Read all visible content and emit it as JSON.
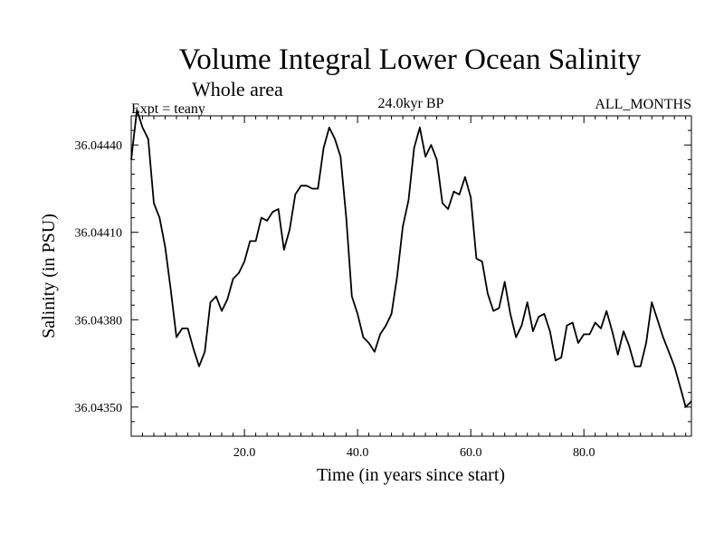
{
  "chart_data": {
    "type": "line",
    "title": "Volume Integral Lower Ocean Salinity",
    "subtitle": "Whole area",
    "experiment": "Expt = teany",
    "period": "24.0kyr BP",
    "months": "ALL_MONTHS",
    "xlabel": "Time (in years since start)",
    "ylabel": "Salinity (in PSU)",
    "xlim": [
      0,
      99
    ],
    "ylim": [
      36.0434,
      36.0445
    ],
    "xticks": [
      20,
      40,
      60,
      80
    ],
    "xtick_labels": [
      "20.0",
      "40.0",
      "60.0",
      "80.0"
    ],
    "yticks": [
      36.0435,
      36.0438,
      36.0441,
      36.0444
    ],
    "ytick_labels": [
      "36.04350",
      "36.04380",
      "36.04410",
      "36.04440"
    ],
    "grid": false,
    "series": [
      {
        "name": "Salinity",
        "x": [
          0,
          1,
          2,
          3,
          4,
          5,
          6,
          7,
          8,
          9,
          10,
          11,
          12,
          13,
          14,
          15,
          16,
          17,
          18,
          19,
          20,
          21,
          22,
          23,
          24,
          25,
          26,
          27,
          28,
          29,
          30,
          31,
          32,
          33,
          34,
          35,
          36,
          37,
          38,
          39,
          40,
          41,
          42,
          43,
          44,
          45,
          46,
          47,
          48,
          49,
          50,
          51,
          52,
          53,
          54,
          55,
          56,
          57,
          58,
          59,
          60,
          61,
          62,
          63,
          64,
          65,
          66,
          67,
          68,
          69,
          70,
          71,
          72,
          73,
          74,
          75,
          76,
          77,
          78,
          79,
          80,
          81,
          82,
          83,
          84,
          85,
          86,
          87,
          88,
          89,
          90,
          91,
          92,
          93,
          94,
          95,
          96,
          97,
          98,
          99
        ],
        "values": [
          36.04435,
          36.04452,
          36.04446,
          36.04442,
          36.0442,
          36.04415,
          36.04405,
          36.0439,
          36.04374,
          36.04377,
          36.04377,
          36.0437,
          36.04364,
          36.04369,
          36.04386,
          36.04388,
          36.04383,
          36.04387,
          36.04394,
          36.04396,
          36.044,
          36.04407,
          36.04407,
          36.04415,
          36.04414,
          36.04417,
          36.04418,
          36.04404,
          36.04411,
          36.04423,
          36.04426,
          36.04426,
          36.04425,
          36.04425,
          36.04439,
          36.04446,
          36.04442,
          36.04436,
          36.04415,
          36.04388,
          36.04382,
          36.04374,
          36.04372,
          36.04369,
          36.04375,
          36.04378,
          36.04382,
          36.04395,
          36.04412,
          36.04421,
          36.04439,
          36.04446,
          36.04436,
          36.0444,
          36.04435,
          36.0442,
          36.04418,
          36.04424,
          36.04423,
          36.04429,
          36.04422,
          36.04401,
          36.044,
          36.04389,
          36.04383,
          36.04384,
          36.04393,
          36.04382,
          36.04374,
          36.04378,
          36.04386,
          36.04376,
          36.04381,
          36.04382,
          36.04376,
          36.04366,
          36.04367,
          36.04378,
          36.04379,
          36.04372,
          36.04375,
          36.04375,
          36.04379,
          36.04377,
          36.04383,
          36.04376,
          36.04368,
          36.04376,
          36.04371,
          36.04364,
          36.04364,
          36.04372,
          36.04386,
          36.0438,
          36.04374,
          36.04369,
          36.04364,
          36.04357,
          36.0435,
          36.04352
        ]
      }
    ]
  }
}
